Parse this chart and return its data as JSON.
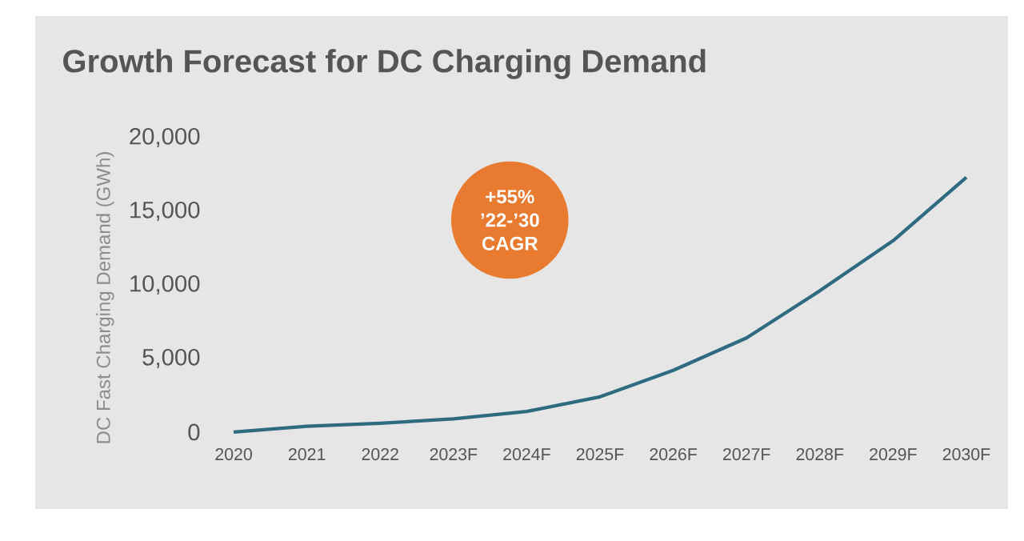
{
  "chart_data": {
    "type": "line",
    "title": "Growth Forecast for DC Charging Demand",
    "ylabel": "DC Fast Charging Demand (GWh)",
    "categories": [
      "2020",
      "2021",
      "2022",
      "2023F",
      "2024F",
      "2025F",
      "2026F",
      "2027F",
      "2028F",
      "2029F",
      "2030F"
    ],
    "series": [
      {
        "color": "#2e6a80",
        "values": [
          0,
          400,
          600,
          900,
          1400,
          2400,
          4200,
          6400,
          9600,
          13000,
          17300
        ]
      }
    ],
    "ylim": [
      0,
      20000
    ],
    "yticks": [
      {
        "value": 0,
        "label": "0"
      },
      {
        "value": 5000,
        "label": "5,000"
      },
      {
        "value": 10000,
        "label": "10,000"
      },
      {
        "value": 15000,
        "label": "15,000"
      },
      {
        "value": 20000,
        "label": "20,000"
      }
    ],
    "annotations": [
      "+55% ’22-’30 CAGR"
    ]
  }
}
